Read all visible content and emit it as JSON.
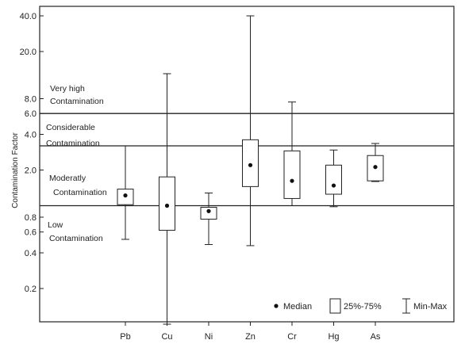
{
  "chart_data": {
    "type": "box",
    "ylabel": "Contamination Factor",
    "y_scale": "log",
    "ylim": [
      0.1,
      45
    ],
    "y_ticks": [
      "0.2",
      "0.4",
      "0.6",
      "0.8",
      "2.0",
      "4.0",
      "6.0",
      "8.0",
      "20.0",
      "40.0"
    ],
    "categories": [
      "Pb",
      "Cu",
      "Ni",
      "Zn",
      "Cr",
      "Hg",
      "As"
    ],
    "series": [
      {
        "category": "Pb",
        "min": 0.52,
        "q1": 1.02,
        "median": 1.22,
        "q3": 1.38,
        "max": 3.2
      },
      {
        "category": "Cu",
        "min": 0.1,
        "q1": 0.62,
        "median": 1.0,
        "q3": 1.75,
        "max": 13.0
      },
      {
        "category": "Ni",
        "min": 0.47,
        "q1": 0.77,
        "median": 0.9,
        "q3": 0.97,
        "max": 1.28
      },
      {
        "category": "Zn",
        "min": 0.46,
        "q1": 1.45,
        "median": 2.2,
        "q3": 3.6,
        "max": 40.0
      },
      {
        "category": "Cr",
        "min": 1.0,
        "q1": 1.15,
        "median": 1.62,
        "q3": 2.9,
        "max": 7.5
      },
      {
        "category": "Hg",
        "min": 0.98,
        "q1": 1.25,
        "median": 1.48,
        "q3": 2.2,
        "max": 2.95
      },
      {
        "category": "As",
        "min": 1.6,
        "q1": 1.62,
        "median": 2.12,
        "q3": 2.65,
        "max": 3.35
      }
    ],
    "reference_lines": [
      1.0,
      3.2,
      6.0
    ],
    "zones": [
      {
        "line1": "Very high",
        "line2": "Contamination"
      },
      {
        "line1": "Considerable",
        "line2": "Contamination"
      },
      {
        "line1": "Moderatly",
        "line2": "Contamination"
      },
      {
        "line1": "Low",
        "line2": "Contamination"
      }
    ],
    "legend": {
      "median": "Median",
      "box": "25%-75%",
      "whisker": "Min-Max"
    }
  }
}
